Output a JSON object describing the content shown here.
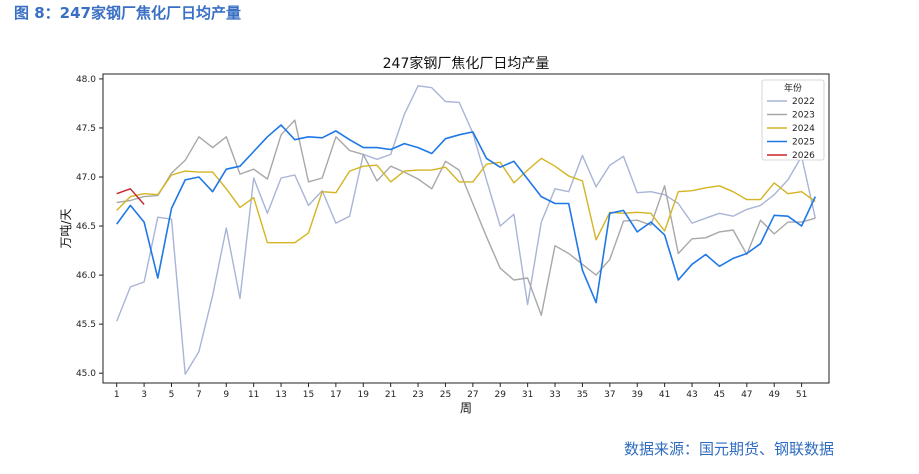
{
  "figure_title": "图 8：247家钢厂焦化厂日均产量",
  "source": "数据来源：国元期货、钢联数据",
  "chart_data": {
    "type": "line",
    "title": "247家钢厂焦化厂日均产量",
    "xlabel": "周",
    "ylabel": "万吨/天",
    "ylim": [
      44.9,
      48.05
    ],
    "xlim": [
      0,
      53
    ],
    "yticks": [
      "45.0",
      "45.5",
      "46.0",
      "46.5",
      "47.0",
      "47.5",
      "48.0"
    ],
    "xticks": [
      "1",
      "3",
      "5",
      "7",
      "9",
      "11",
      "13",
      "15",
      "17",
      "19",
      "21",
      "23",
      "25",
      "27",
      "29",
      "31",
      "33",
      "35",
      "37",
      "39",
      "41",
      "43",
      "45",
      "47",
      "49",
      "51"
    ],
    "legend_title": "年份",
    "legend_position": "top-right",
    "series": [
      {
        "name": "2022",
        "color": "#a9b4d6",
        "values": [
          45.53,
          45.88,
          45.93,
          46.59,
          46.57,
          44.99,
          45.22,
          45.79,
          46.48,
          45.76,
          46.99,
          46.63,
          46.99,
          47.02,
          46.71,
          46.86,
          46.53,
          46.6,
          47.23,
          47.18,
          47.23,
          47.64,
          47.93,
          47.91,
          47.77,
          47.76,
          47.45,
          46.97,
          46.5,
          46.62,
          45.7,
          46.54,
          46.88,
          46.85,
          47.22,
          46.9,
          47.12,
          47.21,
          46.84,
          46.85,
          46.82,
          46.73,
          46.53,
          46.58,
          46.63,
          46.6,
          46.67,
          46.71,
          46.82,
          46.97,
          47.21,
          46.58
        ]
      },
      {
        "name": "2023",
        "color": "#a8a8a8",
        "values": [
          46.74,
          46.76,
          46.8,
          46.81,
          47.04,
          47.17,
          47.41,
          47.3,
          47.41,
          47.03,
          47.08,
          46.98,
          47.43,
          47.58,
          46.95,
          46.99,
          47.41,
          47.27,
          47.23,
          46.96,
          47.11,
          47.05,
          46.98,
          46.88,
          47.16,
          47.07,
          46.73,
          46.39,
          46.07,
          45.95,
          45.97,
          45.59,
          46.3,
          46.22,
          46.11,
          46.0,
          46.16,
          46.55,
          46.56,
          46.51,
          46.91,
          46.22,
          46.37,
          46.38,
          46.44,
          46.46,
          46.21,
          46.56,
          46.42,
          46.54,
          46.54,
          46.58
        ]
      },
      {
        "name": "2024",
        "color": "#d4b424",
        "values": [
          46.66,
          46.8,
          46.83,
          46.82,
          47.02,
          47.06,
          47.05,
          47.05,
          46.88,
          46.69,
          46.79,
          46.33,
          46.33,
          46.33,
          46.43,
          46.85,
          46.84,
          47.06,
          47.11,
          47.12,
          46.95,
          47.06,
          47.07,
          47.07,
          47.1,
          46.95,
          46.95,
          47.13,
          47.15,
          46.94,
          47.07,
          47.19,
          47.11,
          47.01,
          46.96,
          46.36,
          46.64,
          46.63,
          46.64,
          46.63,
          46.45,
          46.85,
          46.86,
          46.89,
          46.91,
          46.85,
          46.77,
          46.77,
          46.94,
          46.83,
          46.85,
          46.75
        ]
      },
      {
        "name": "2025",
        "color": "#1f78e6",
        "values": [
          46.52,
          46.71,
          46.54,
          45.97,
          46.68,
          46.97,
          47.0,
          46.85,
          47.08,
          47.11,
          47.26,
          47.41,
          47.53,
          47.38,
          47.41,
          47.4,
          47.47,
          47.38,
          47.3,
          47.3,
          47.28,
          47.34,
          47.3,
          47.24,
          47.39,
          47.43,
          47.46,
          47.19,
          47.1,
          47.16,
          46.98,
          46.8,
          46.73,
          46.73,
          46.05,
          45.72,
          46.63,
          46.66,
          46.44,
          46.54,
          46.41,
          45.95,
          46.11,
          46.21,
          46.09,
          46.17,
          46.22,
          46.32,
          46.61,
          46.6,
          46.5,
          46.8
        ]
      },
      {
        "name": "2026",
        "color": "#c8242c",
        "values": [
          46.83,
          46.88,
          46.72
        ]
      }
    ]
  }
}
